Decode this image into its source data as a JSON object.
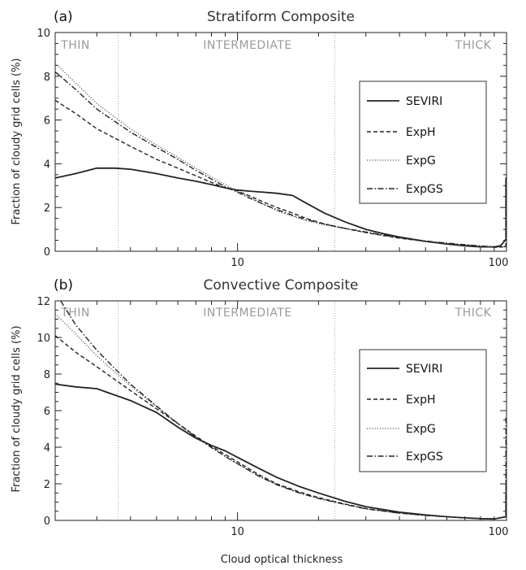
{
  "chart_data": [
    {
      "type": "line",
      "panel_label": "(a)",
      "title": "Stratiform Composite",
      "xlabel": "",
      "ylabel": "Fraction of cloudy grid cells (%)",
      "xscale": "log",
      "xlim": [
        2.1,
        100
      ],
      "ylim": [
        0,
        10
      ],
      "yticks": [
        0,
        2,
        4,
        6,
        8,
        10
      ],
      "xticks": [
        10,
        100
      ],
      "regions": [
        {
          "label": "THIN",
          "x_from": 2.1,
          "x_to": 3.6
        },
        {
          "label": "INTERMEDIATE",
          "x_from": 3.6,
          "x_to": 23
        },
        {
          "label": "THICK",
          "x_from": 23,
          "x_to": 100
        }
      ],
      "legend_position": "right",
      "series": [
        {
          "name": "SEVIRI",
          "style": "solid",
          "x": [
            2.1,
            2.5,
            3.0,
            3.5,
            4.0,
            5.0,
            6.0,
            7.0,
            8.0,
            9.0,
            10.0,
            11.0,
            12.5,
            14.0,
            16.0,
            18.0,
            21.0,
            25.0,
            30.0,
            35.0,
            40.0,
            50.0,
            60.0,
            70.0,
            80.0,
            90.0,
            95.0,
            99.5,
            99.5
          ],
          "y": [
            3.35,
            3.55,
            3.8,
            3.8,
            3.75,
            3.55,
            3.35,
            3.2,
            3.05,
            2.9,
            2.8,
            2.75,
            2.7,
            2.65,
            2.55,
            2.2,
            1.75,
            1.35,
            1.0,
            0.8,
            0.65,
            0.45,
            0.33,
            0.25,
            0.2,
            0.2,
            0.25,
            0.55,
            3.3
          ]
        },
        {
          "name": "ExpH",
          "style": "dashed",
          "x": [
            2.1,
            2.5,
            3.0,
            4.0,
            5.0,
            6.0,
            7.0,
            8.0,
            9.0,
            10.0,
            11.0,
            12.5,
            14.0,
            16.0,
            18.0,
            21.0,
            25.0,
            30.0,
            40.0,
            50.0,
            60.0,
            70.0,
            80.0,
            90.0,
            99.5,
            99.5
          ],
          "y": [
            6.9,
            6.3,
            5.6,
            4.8,
            4.2,
            3.8,
            3.45,
            3.15,
            2.9,
            2.75,
            2.55,
            2.25,
            2.0,
            1.75,
            1.5,
            1.25,
            1.05,
            0.85,
            0.6,
            0.45,
            0.35,
            0.28,
            0.22,
            0.18,
            0.2,
            2.2
          ]
        },
        {
          "name": "ExpG",
          "style": "dotted",
          "x": [
            2.1,
            2.5,
            3.0,
            4.0,
            5.0,
            6.0,
            7.0,
            8.0,
            9.0,
            10.0,
            11.0,
            12.5,
            14.0,
            16.0,
            18.0,
            21.0,
            25.0,
            30.0,
            40.0,
            50.0,
            60.0,
            70.0,
            80.0,
            90.0,
            99.5,
            99.5
          ],
          "y": [
            8.6,
            7.7,
            6.75,
            5.6,
            4.85,
            4.3,
            3.8,
            3.4,
            3.05,
            2.75,
            2.5,
            2.15,
            1.85,
            1.6,
            1.4,
            1.2,
            1.05,
            0.85,
            0.6,
            0.45,
            0.35,
            0.28,
            0.22,
            0.18,
            0.2,
            3.0
          ]
        },
        {
          "name": "ExpGS",
          "style": "dash-dot",
          "x": [
            2.1,
            2.5,
            3.0,
            4.0,
            5.0,
            6.0,
            7.0,
            8.0,
            9.0,
            10.0,
            11.0,
            12.5,
            14.0,
            16.0,
            18.0,
            21.0,
            25.0,
            30.0,
            40.0,
            50.0,
            60.0,
            70.0,
            80.0,
            90.0,
            99.5,
            99.5
          ],
          "y": [
            8.2,
            7.4,
            6.5,
            5.45,
            4.75,
            4.2,
            3.7,
            3.3,
            2.95,
            2.7,
            2.45,
            2.15,
            1.9,
            1.65,
            1.45,
            1.25,
            1.05,
            0.88,
            0.62,
            0.47,
            0.37,
            0.3,
            0.24,
            0.2,
            0.22,
            3.5
          ]
        }
      ]
    },
    {
      "type": "line",
      "panel_label": "(b)",
      "title": "Convective Composite",
      "xlabel": "Cloud optical thickness",
      "ylabel": "Fraction of cloudy grid cells (%)",
      "xscale": "log",
      "xlim": [
        2.1,
        100
      ],
      "ylim": [
        0,
        12
      ],
      "yticks": [
        0,
        2,
        4,
        6,
        8,
        10,
        12
      ],
      "xticks": [
        10,
        100
      ],
      "regions": [
        {
          "label": "THIN",
          "x_from": 2.1,
          "x_to": 3.6
        },
        {
          "label": "INTERMEDIATE",
          "x_from": 3.6,
          "x_to": 23
        },
        {
          "label": "THICK",
          "x_from": 23,
          "x_to": 100
        }
      ],
      "legend_position": "right",
      "series": [
        {
          "name": "SEVIRI",
          "style": "solid",
          "x": [
            2.1,
            2.5,
            3.0,
            3.5,
            4.0,
            5.0,
            6.0,
            7.0,
            8.0,
            9.0,
            10.0,
            12.0,
            14.0,
            17.0,
            20.0,
            25.0,
            30.0,
            40.0,
            50.0,
            60.0,
            70.0,
            80.0,
            90.0,
            99.5,
            99.5
          ],
          "y": [
            7.45,
            7.3,
            7.2,
            6.85,
            6.55,
            5.9,
            5.1,
            4.5,
            4.1,
            3.8,
            3.45,
            2.85,
            2.35,
            1.85,
            1.5,
            1.05,
            0.75,
            0.45,
            0.3,
            0.2,
            0.14,
            0.1,
            0.08,
            0.2,
            1.4
          ]
        },
        {
          "name": "ExpH",
          "style": "dashed",
          "x": [
            2.1,
            2.5,
            3.0,
            3.5,
            4.0,
            5.0,
            6.0,
            7.0,
            8.0,
            9.0,
            10.0,
            12.0,
            14.0,
            17.0,
            20.0,
            25.0,
            30.0,
            40.0,
            50.0,
            60.0,
            70.0,
            80.0,
            90.0,
            99.5,
            99.5
          ],
          "y": [
            10.1,
            9.2,
            8.4,
            7.7,
            7.1,
            6.1,
            5.3,
            4.6,
            4.05,
            3.6,
            3.2,
            2.5,
            2.0,
            1.55,
            1.25,
            0.9,
            0.65,
            0.4,
            0.28,
            0.2,
            0.14,
            0.1,
            0.08,
            0.2,
            2.8
          ]
        },
        {
          "name": "ExpG",
          "style": "dotted",
          "x": [
            2.1,
            2.5,
            3.0,
            3.5,
            4.0,
            5.0,
            6.0,
            7.0,
            8.0,
            9.0,
            10.0,
            12.0,
            14.0,
            17.0,
            20.0,
            25.0,
            30.0,
            40.0,
            50.0,
            60.0,
            70.0,
            80.0,
            90.0,
            99.5,
            99.5
          ],
          "y": [
            11.3,
            10.2,
            9.0,
            8.1,
            7.35,
            6.2,
            5.3,
            4.55,
            4.0,
            3.5,
            3.1,
            2.4,
            1.95,
            1.5,
            1.2,
            0.88,
            0.63,
            0.4,
            0.27,
            0.2,
            0.14,
            0.1,
            0.08,
            0.2,
            3.2
          ]
        },
        {
          "name": "ExpGS",
          "style": "dash-dot",
          "x": [
            2.2,
            2.5,
            3.0,
            3.5,
            4.0,
            5.0,
            6.0,
            7.0,
            8.0,
            9.0,
            10.0,
            12.0,
            14.0,
            17.0,
            20.0,
            25.0,
            30.0,
            40.0,
            50.0,
            60.0,
            70.0,
            80.0,
            90.0,
            99.5,
            99.5
          ],
          "y": [
            12.0,
            10.7,
            9.3,
            8.3,
            7.45,
            6.25,
            5.3,
            4.55,
            3.98,
            3.5,
            3.1,
            2.42,
            1.95,
            1.5,
            1.2,
            0.88,
            0.63,
            0.4,
            0.27,
            0.2,
            0.14,
            0.1,
            0.08,
            0.2,
            5.6
          ]
        }
      ]
    }
  ]
}
